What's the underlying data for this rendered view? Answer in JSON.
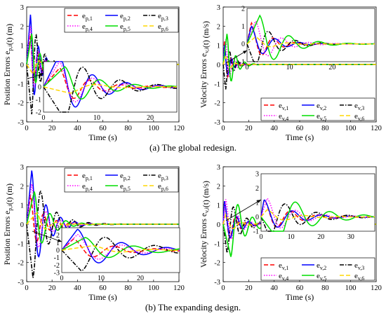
{
  "captions": {
    "a": "(a) The global redesign.",
    "b": "(b) The expanding design."
  },
  "chart_data": [
    {
      "id": "a-position",
      "type": "line",
      "xlabel": "Time (s)",
      "ylabel": "Position Errors e_{p,i}(t) (m)",
      "xlim": [
        0,
        120
      ],
      "ylim": [
        -3,
        3
      ],
      "xticks": [
        0,
        20,
        40,
        60,
        80,
        100,
        120
      ],
      "yticks": [
        -3,
        -2,
        -1,
        0,
        1,
        2,
        3
      ],
      "legend": "top-right",
      "series": [
        {
          "name": "e_{p,1}",
          "color": "#ff0000",
          "dash": "dashed",
          "amp": 1.5,
          "peak": 3,
          "w": 1.1,
          "decay": 0.18
        },
        {
          "name": "e_{p,2}",
          "color": "#0000ff",
          "dash": "solid",
          "amp": 2.6,
          "peak": 3,
          "w": 1.0,
          "decay": 0.16
        },
        {
          "name": "e_{p,3}",
          "color": "#000000",
          "dash": "dashdot",
          "amp": -2.6,
          "peak": 4,
          "w": 0.9,
          "decay": 0.15
        },
        {
          "name": "e_{p,4}",
          "color": "#ff00ff",
          "dash": "dotted",
          "amp": 2.0,
          "peak": 3,
          "w": 1.0,
          "decay": 0.17
        },
        {
          "name": "e_{p,5}",
          "color": "#00dd00",
          "dash": "solid",
          "amp": 1.6,
          "peak": 4,
          "w": 0.95,
          "decay": 0.16
        },
        {
          "name": "e_{p,6}",
          "color": "#ffd700",
          "dash": "dashed",
          "amp": -0.5,
          "peak": 5,
          "w": 0.6,
          "decay": 0.2
        }
      ],
      "inset": {
        "xlim": [
          0,
          25
        ],
        "ylim": [
          -2,
          2
        ],
        "xticks": [
          0,
          10,
          20
        ],
        "yticks": [
          -2,
          -1,
          0,
          1,
          2
        ]
      }
    },
    {
      "id": "a-velocity",
      "type": "line",
      "xlabel": "Time (s)",
      "ylabel": "Velocity Errors e_{v,i}(t) (m/s)",
      "xlim": [
        0,
        120
      ],
      "ylim": [
        -3,
        3
      ],
      "xticks": [
        0,
        20,
        40,
        60,
        80,
        100,
        120
      ],
      "yticks": [
        -3,
        -2,
        -1,
        0,
        1,
        2,
        3
      ],
      "legend": "bottom-right",
      "series": [
        {
          "name": "e_{v,1}",
          "color": "#ff0000",
          "dash": "dashed",
          "amp": 1.2,
          "peak": 1,
          "w": 1.2,
          "decay": 0.25
        },
        {
          "name": "e_{v,2}",
          "color": "#0000ff",
          "dash": "solid",
          "amp": 1.0,
          "peak": 1,
          "w": 1.1,
          "decay": 0.22
        },
        {
          "name": "e_{v,3}",
          "color": "#000000",
          "dash": "dashdot",
          "amp": -1.3,
          "peak": 2,
          "w": 1.0,
          "decay": 0.2
        },
        {
          "name": "e_{v,4}",
          "color": "#ff00ff",
          "dash": "dotted",
          "amp": 1.3,
          "peak": 2,
          "w": 1.0,
          "decay": 0.22
        },
        {
          "name": "e_{v,5}",
          "color": "#00dd00",
          "dash": "solid",
          "amp": 1.6,
          "peak": 3,
          "w": 0.9,
          "decay": 0.18
        },
        {
          "name": "e_{v,6}",
          "color": "#ffd700",
          "dash": "dashed",
          "amp": 0.4,
          "peak": 2,
          "w": 0.8,
          "decay": 0.25
        }
      ],
      "inset": {
        "xlim": [
          0,
          30
        ],
        "ylim": [
          -1,
          2
        ],
        "xticks": [
          0,
          10,
          20
        ],
        "yticks": [
          -1,
          0,
          1,
          2
        ]
      }
    },
    {
      "id": "b-position",
      "type": "line",
      "xlabel": "Time (s)",
      "ylabel": "Position Errors e_{p,i}(t) (m)",
      "xlim": [
        0,
        120
      ],
      "ylim": [
        -3,
        3
      ],
      "xticks": [
        0,
        20,
        40,
        60,
        80,
        100,
        120
      ],
      "yticks": [
        -3,
        -2,
        -1,
        0,
        1,
        2,
        3
      ],
      "legend": "top-right",
      "series": [
        {
          "name": "e_{p,1}",
          "color": "#ff0000",
          "dash": "dashed",
          "amp": 1.5,
          "peak": 3,
          "w": 0.6,
          "decay": 0.1
        },
        {
          "name": "e_{p,2}",
          "color": "#0000ff",
          "dash": "solid",
          "amp": 2.8,
          "peak": 4,
          "w": 0.55,
          "decay": 0.09
        },
        {
          "name": "e_{p,3}",
          "color": "#000000",
          "dash": "dashdot",
          "amp": -2.8,
          "peak": 5,
          "w": 0.5,
          "decay": 0.08
        },
        {
          "name": "e_{p,4}",
          "color": "#ff00ff",
          "dash": "dotted",
          "amp": 2.1,
          "peak": 4,
          "w": 0.55,
          "decay": 0.1
        },
        {
          "name": "e_{p,5}",
          "color": "#00dd00",
          "dash": "solid",
          "amp": 1.7,
          "peak": 6,
          "w": 0.5,
          "decay": 0.09
        },
        {
          "name": "e_{p,6}",
          "color": "#ffd700",
          "dash": "dashed",
          "amp": 0.6,
          "peak": 8,
          "w": 0.4,
          "decay": 0.12
        }
      ],
      "inset": {
        "xlim": [
          0,
          30
        ],
        "ylim": [
          -3,
          3
        ],
        "xticks": [
          0,
          10,
          20
        ],
        "yticks": [
          -3,
          -2,
          -1,
          0,
          1,
          2,
          3
        ]
      }
    },
    {
      "id": "b-velocity",
      "type": "line",
      "xlabel": "Time (s)",
      "ylabel": "Velocity Errors e_{v,i}(t) (m/s)",
      "xlim": [
        0,
        120
      ],
      "ylim": [
        -3,
        3
      ],
      "xticks": [
        0,
        20,
        40,
        60,
        80,
        100,
        120
      ],
      "yticks": [
        -3,
        -2,
        -1,
        0,
        1,
        2,
        3
      ],
      "legend": "bottom-right",
      "series": [
        {
          "name": "e_{v,1}",
          "color": "#ff0000",
          "dash": "dashed",
          "amp": 1.2,
          "peak": 1,
          "w": 0.7,
          "decay": 0.12
        },
        {
          "name": "e_{v,2}",
          "color": "#0000ff",
          "dash": "solid",
          "amp": 1.2,
          "peak": 1,
          "w": 0.65,
          "decay": 0.11
        },
        {
          "name": "e_{v,3}",
          "color": "#000000",
          "dash": "dashdot",
          "amp": -1.5,
          "peak": 3,
          "w": 0.6,
          "decay": 0.1
        },
        {
          "name": "e_{v,4}",
          "color": "#ff00ff",
          "dash": "dotted",
          "amp": 1.3,
          "peak": 2,
          "w": 0.65,
          "decay": 0.11
        },
        {
          "name": "e_{v,5}",
          "color": "#00dd00",
          "dash": "solid",
          "amp": -1.7,
          "peak": 6,
          "w": 0.55,
          "decay": 0.09
        },
        {
          "name": "e_{v,6}",
          "color": "#ffd700",
          "dash": "dashed",
          "amp": 0.5,
          "peak": 2,
          "w": 0.5,
          "decay": 0.13
        }
      ],
      "inset": {
        "xlim": [
          0,
          38
        ],
        "ylim": [
          -1,
          3
        ],
        "xticks": [
          0,
          10,
          20,
          30
        ],
        "yticks": [
          -1,
          0,
          1,
          2,
          3
        ]
      }
    }
  ]
}
